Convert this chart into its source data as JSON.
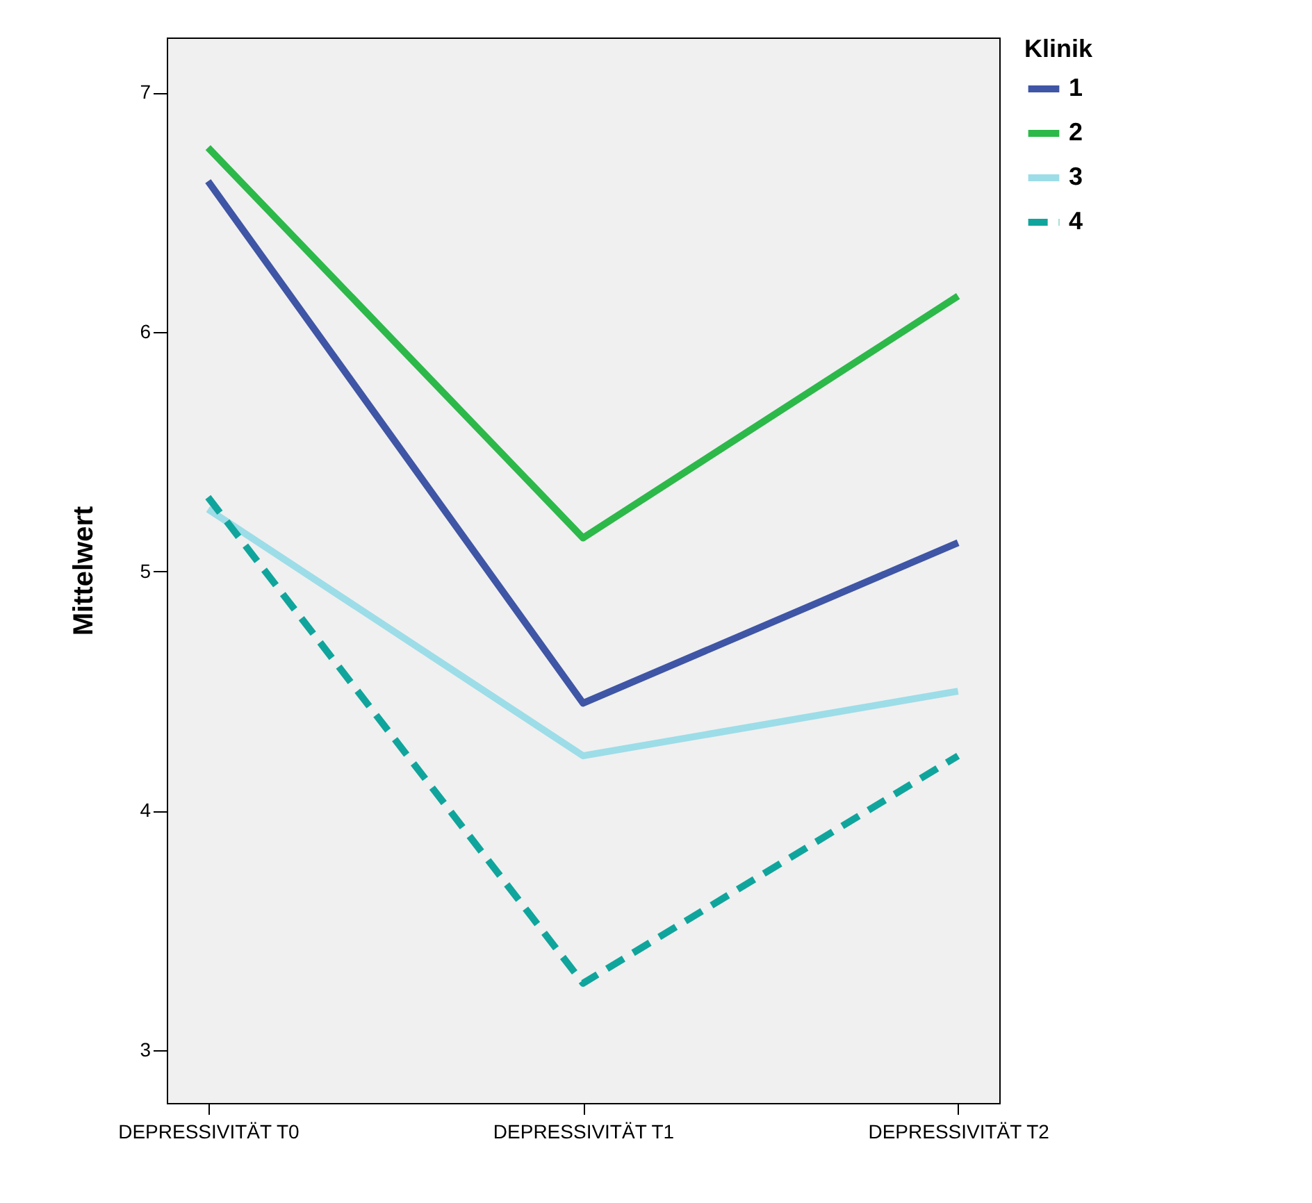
{
  "chart_data": {
    "type": "line",
    "ylabel": "Mittelwert",
    "legend_title": "Klinik",
    "legend": "top right",
    "grid": false,
    "marker": "none",
    "categories": [
      "DEPRESSIVITÄT T0",
      "DEPRESSIVITÄT T1",
      "DEPRESSIVITÄT T2"
    ],
    "ylim": [
      2.78,
      7.23
    ],
    "yticks": [
      3,
      4,
      5,
      6,
      7
    ],
    "series": [
      {
        "name": "1",
        "color": "#3f55a5",
        "line_style": "solid",
        "values": [
          6.63,
          4.45,
          5.12
        ]
      },
      {
        "name": "2",
        "color": "#2db84a",
        "line_style": "solid",
        "values": [
          6.77,
          5.14,
          6.15
        ]
      },
      {
        "name": "3",
        "color": "#9cdde8",
        "line_style": "solid",
        "values": [
          5.26,
          4.23,
          4.5
        ]
      },
      {
        "name": "4",
        "color": "#10a59c",
        "line_style": "dashed",
        "values": [
          5.31,
          3.28,
          4.23
        ]
      }
    ]
  }
}
